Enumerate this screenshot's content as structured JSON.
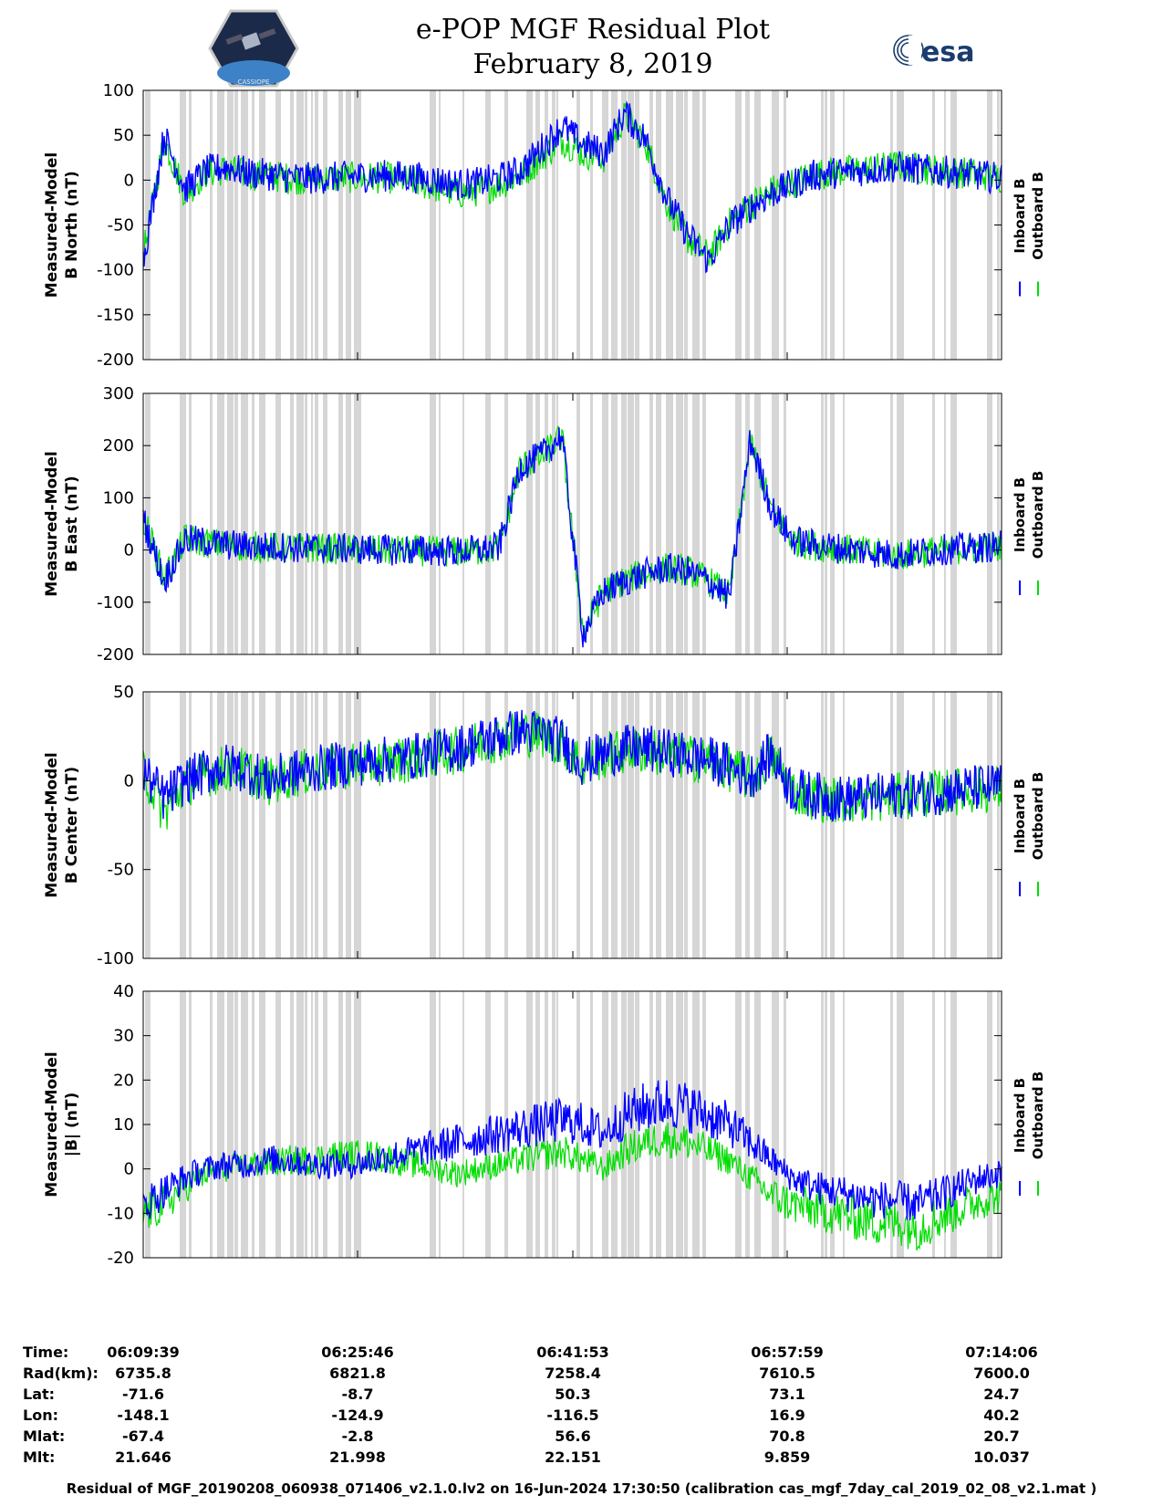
{
  "header": {
    "title_line1": "e-POP MGF Residual Plot",
    "title_line2": "February 8, 2019",
    "logo_left": "CASSIOPE",
    "logo_right": "esa"
  },
  "chart_data": [
    {
      "type": "line",
      "ylabel_line1": "Measured-Model",
      "ylabel_line2": "B North (nT)",
      "ylim": [
        -200,
        100
      ],
      "yticks": [
        100,
        50,
        0,
        -50,
        -100,
        -150,
        -200
      ],
      "series": [
        {
          "name": "Inboard B",
          "color": "#0000ff",
          "values": [
            -90,
            50,
            -10,
            10,
            15,
            8,
            6,
            3,
            2,
            3,
            4,
            5,
            5,
            3,
            0,
            -5,
            -3,
            2,
            10,
            35,
            60,
            40,
            30,
            75,
            45,
            -20,
            -60,
            -90,
            -50,
            -30,
            -15,
            -5,
            5,
            8,
            10,
            12,
            15,
            12,
            10,
            8,
            5,
            2
          ]
        },
        {
          "name": "Outboard B",
          "color": "#00dd00",
          "values": [
            -85,
            45,
            -15,
            8,
            12,
            6,
            5,
            2,
            1,
            2,
            3,
            3,
            2,
            -2,
            -8,
            -15,
            -12,
            -5,
            5,
            25,
            45,
            30,
            25,
            72,
            42,
            -25,
            -65,
            -85,
            -48,
            -28,
            -12,
            -3,
            6,
            9,
            11,
            13,
            16,
            13,
            11,
            9,
            6,
            3
          ]
        }
      ]
    },
    {
      "type": "line",
      "ylabel_line1": "Measured-Model",
      "ylabel_line2": "B East (nT)",
      "ylim": [
        -200,
        300
      ],
      "yticks": [
        300,
        200,
        100,
        0,
        -100,
        -200
      ],
      "series": [
        {
          "name": "Inboard B",
          "color": "#0000ff",
          "values": [
            60,
            -60,
            20,
            15,
            10,
            8,
            6,
            5,
            4,
            3,
            2,
            1,
            0,
            0,
            -2,
            -3,
            0,
            5,
            160,
            180,
            220,
            -160,
            -80,
            -60,
            -45,
            -35,
            -40,
            -60,
            -90,
            210,
            80,
            20,
            10,
            5,
            0,
            -5,
            -10,
            -5,
            0,
            3,
            5,
            8
          ]
        },
        {
          "name": "Outboard B",
          "color": "#00dd00",
          "values": [
            65,
            -55,
            22,
            14,
            9,
            7,
            5,
            4,
            3,
            2,
            1,
            0,
            -1,
            -1,
            -3,
            -4,
            -1,
            4,
            158,
            178,
            218,
            -158,
            -78,
            -58,
            -44,
            -34,
            -39,
            -59,
            -88,
            208,
            78,
            18,
            9,
            4,
            -1,
            -6,
            -11,
            -6,
            -1,
            2,
            4,
            7
          ]
        }
      ]
    },
    {
      "type": "line",
      "ylabel_line1": "Measured-Model",
      "ylabel_line2": "B Center (nT)",
      "ylim": [
        -100,
        50
      ],
      "yticks": [
        50,
        0,
        -50,
        -100
      ],
      "series": [
        {
          "name": "Inboard B",
          "color": "#0000ff",
          "values": [
            5,
            -10,
            0,
            5,
            8,
            6,
            0,
            4,
            6,
            8,
            10,
            11,
            12,
            14,
            16,
            18,
            22,
            25,
            28,
            27,
            22,
            10,
            15,
            18,
            18,
            16,
            14,
            12,
            8,
            2,
            15,
            -5,
            -8,
            -10,
            -10,
            -9,
            -8,
            -7,
            -6,
            -5,
            -4,
            -3
          ]
        },
        {
          "name": "Outboard B",
          "color": "#00dd00",
          "values": [
            6,
            -18,
            -2,
            4,
            7,
            5,
            -1,
            3,
            5,
            7,
            9,
            10,
            11,
            13,
            15,
            17,
            21,
            24,
            27,
            26,
            21,
            9,
            14,
            17,
            17,
            15,
            13,
            11,
            7,
            1,
            14,
            -6,
            -9,
            -11,
            -11,
            -10,
            -9,
            -8,
            -7,
            -6,
            -5,
            -4
          ]
        }
      ]
    },
    {
      "type": "line",
      "ylabel_line1": "Measured-Model",
      "ylabel_line2": "|B| (nT)",
      "ylim": [
        -20,
        40
      ],
      "yticks": [
        40,
        30,
        20,
        10,
        0,
        -10,
        -20
      ],
      "series": [
        {
          "name": "Inboard B",
          "color": "#0000ff",
          "values": [
            -8,
            -5,
            -2,
            0,
            1,
            1,
            2,
            2,
            1,
            1,
            1,
            2,
            3,
            4,
            5,
            6,
            7,
            8,
            9,
            10,
            11,
            10,
            8,
            12,
            14,
            15,
            14,
            12,
            10,
            6,
            2,
            -2,
            -4,
            -5,
            -6,
            -7,
            -7,
            -8,
            -6,
            -4,
            -2,
            -1
          ]
        },
        {
          "name": "Outboard B",
          "color": "#00dd00",
          "values": [
            -10,
            -8,
            -4,
            -1,
            0,
            1,
            1,
            2,
            2,
            3,
            3,
            3,
            2,
            1,
            0,
            -1,
            0,
            1,
            2,
            3,
            4,
            2,
            0,
            4,
            6,
            7,
            6,
            4,
            2,
            -2,
            -6,
            -8,
            -9,
            -10,
            -11,
            -12,
            -12,
            -13,
            -11,
            -9,
            -7,
            -6
          ]
        }
      ]
    }
  ],
  "legend": {
    "inboard": "Inboard B",
    "outboard": "Outboard B"
  },
  "ephemeris": {
    "labels": [
      "Time:",
      "Rad(km):",
      "Lat:",
      "Lon:",
      "Mlat:",
      "Mlt:"
    ],
    "columns": [
      [
        "06:09:39",
        "6735.8",
        "-71.6",
        "-148.1",
        "-67.4",
        "21.646"
      ],
      [
        "06:25:46",
        "6821.8",
        "-8.7",
        "-124.9",
        "-2.8",
        "21.998"
      ],
      [
        "06:41:53",
        "7258.4",
        "50.3",
        "-116.5",
        "56.6",
        "22.151"
      ],
      [
        "06:57:59",
        "7610.5",
        "73.1",
        "16.9",
        "70.8",
        "9.859"
      ],
      [
        "07:14:06",
        "7600.0",
        "24.7",
        "40.2",
        "20.7",
        "10.037"
      ]
    ]
  },
  "footer": "Residual of MGF_20190208_060938_071406_v2.1.0.lv2 on 16-Jun-2024 17:30:50 (calibration cas_mgf_7day_cal_2019_02_08_v2.1.mat )"
}
